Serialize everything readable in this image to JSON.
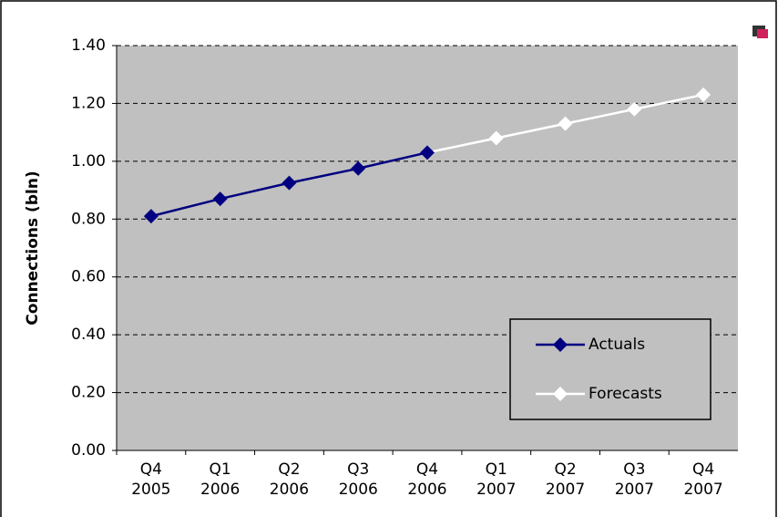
{
  "chart_data": {
    "type": "line",
    "y_label": "Connections (bln)",
    "categories": [
      "Q4 2005",
      "Q1 2006",
      "Q2 2006",
      "Q3 2006",
      "Q4 2006",
      "Q1 2007",
      "Q2 2007",
      "Q3 2007",
      "Q4 2007"
    ],
    "series": [
      {
        "name": "Forecasts",
        "color": "#ffffff",
        "values": [
          null,
          null,
          null,
          null,
          1.03,
          1.08,
          1.13,
          1.18,
          1.23
        ]
      },
      {
        "name": "Actuals",
        "color": "#000080",
        "values": [
          0.81,
          0.87,
          0.925,
          0.975,
          1.03,
          null,
          null,
          null,
          null
        ]
      }
    ],
    "legend_order": [
      1,
      0
    ],
    "ylim": [
      0,
      1.4
    ],
    "yticks": [
      {
        "value": 0,
        "label": "0.00"
      },
      {
        "value": 0.2,
        "label": "0.20"
      },
      {
        "value": 0.4,
        "label": "0.40"
      },
      {
        "value": 0.6,
        "label": "0.60"
      },
      {
        "value": 0.8,
        "label": "0.80"
      },
      {
        "value": 1.0,
        "label": "1.00"
      },
      {
        "value": 1.2,
        "label": "1.20"
      },
      {
        "value": 1.4,
        "label": "1.40"
      }
    ],
    "grid": true,
    "plot_background": "#c0c0c0"
  }
}
